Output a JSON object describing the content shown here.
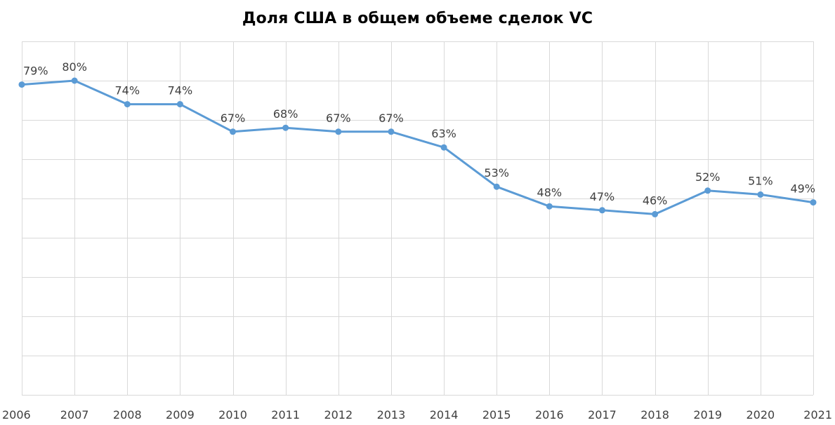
{
  "chart_data": {
    "type": "line",
    "title": "Доля США в общем объеме сделок VC",
    "xlabel": "",
    "ylabel": "",
    "categories": [
      "2006",
      "2007",
      "2008",
      "2009",
      "2010",
      "2011",
      "2012",
      "2013",
      "2014",
      "2015",
      "2016",
      "2017",
      "2018",
      "2019",
      "2020",
      "2021"
    ],
    "values": [
      79,
      80,
      74,
      74,
      67,
      68,
      67,
      67,
      63,
      53,
      48,
      47,
      46,
      52,
      51,
      49
    ],
    "data_labels": [
      "79%",
      "80%",
      "74%",
      "74%",
      "67%",
      "68%",
      "67%",
      "67%",
      "63%",
      "53%",
      "48%",
      "47%",
      "46%",
      "52%",
      "51%",
      "49%"
    ],
    "ylim": [
      0,
      90
    ],
    "y_gridlines": [
      0,
      10,
      20,
      30,
      40,
      50,
      60,
      70,
      80,
      90
    ],
    "y_tick_labels_shown": false,
    "grid": true,
    "legend": "none",
    "series_color": "#5b9bd5"
  }
}
